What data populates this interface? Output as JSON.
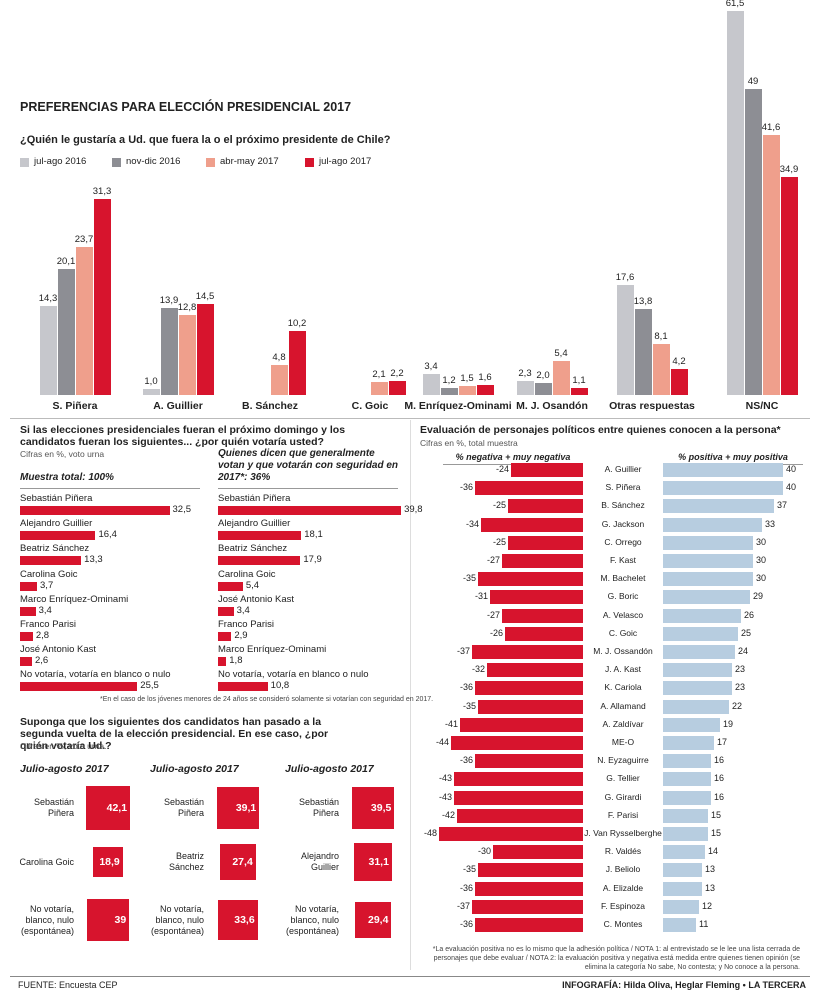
{
  "chart_data": [
    {
      "type": "grouped-bar",
      "title": "PREFERENCIAS PARA ELECCIÓN PRESIDENCIAL 2017",
      "subtitle": "¿Quién le gustaría a Ud. que fuera la o el próximo presidente de Chile?",
      "categories": [
        "S. Piñera",
        "A. Guillier",
        "B. Sánchez",
        "C. Goic",
        "M. Enríquez-Ominami",
        "M. J. Osandón",
        "Otras respuestas",
        "NS/NC"
      ],
      "series": [
        {
          "name": "jul-ago 2016",
          "color": "#c6c7cc",
          "values": [
            14.3,
            1.0,
            null,
            null,
            3.4,
            2.3,
            17.6,
            61.5
          ],
          "value_labels": [
            "14,3",
            "1,0",
            null,
            null,
            "3,4",
            "2,3",
            "17,6",
            "61,5"
          ]
        },
        {
          "name": "nov-dic 2016",
          "color": "#8d8e94",
          "values": [
            20.1,
            13.9,
            null,
            null,
            1.2,
            2.0,
            13.8,
            49
          ],
          "value_labels": [
            "20,1",
            "13,9",
            null,
            null,
            "1,2",
            "2,0",
            "13,8",
            "49"
          ]
        },
        {
          "name": "abr-may 2017",
          "color": "#ef9f8c",
          "values": [
            23.7,
            12.8,
            4.8,
            2.1,
            1.5,
            5.4,
            8.1,
            41.6
          ],
          "value_labels": [
            "23,7",
            "12,8",
            "4,8",
            "2,1",
            "1,5",
            "5,4",
            "8,1",
            "41,6"
          ]
        },
        {
          "name": "jul-ago 2017",
          "color": "#d7142d",
          "values": [
            31.3,
            14.5,
            10.2,
            2.2,
            1.6,
            1.1,
            4.2,
            34.9
          ],
          "value_labels": [
            "31,3",
            "14,5",
            "10,2",
            "2,2",
            "1,6",
            "1,1",
            "4,2",
            "34,9"
          ]
        }
      ]
    },
    {
      "type": "hbar",
      "section_title": "Si las elecciones presidenciales fueran el próximo domingo y los candidatos fueran los siguientes... ¿por quién votaría usted?",
      "note": "Cifras en %, voto urna",
      "title": "Muestra total: 100%",
      "color": "#d7142d",
      "categories": [
        "Sebastián Piñera",
        "Alejandro Guillier",
        "Beatriz Sánchez",
        "Carolina Goic",
        "Marco Enríquez-Ominami",
        "Franco Parisi",
        "José Antonio Kast",
        "No votaría, votaría en blanco o nulo"
      ],
      "values": [
        32.5,
        16.4,
        13.3,
        3.7,
        3.4,
        2.8,
        2.6,
        25.5
      ],
      "value_labels": [
        "32,5",
        "16,4",
        "13,3",
        "3,7",
        "3,4",
        "2,8",
        "2,6",
        "25,5"
      ]
    },
    {
      "type": "hbar",
      "title": "Quienes dicen que generalmente votan y que votarán con seguridad en 2017*: 36%",
      "footnote": "*En el caso de los jóvenes menores de 24 años se consideró solamente si votarían con seguridad en 2017.",
      "color": "#d7142d",
      "categories": [
        "Sebastián Piñera",
        "Alejandro Guillier",
        "Beatriz Sánchez",
        "Carolina Goic",
        "José Antonio Kast",
        "Franco Parisi",
        "Marco Enríquez-Ominami",
        "No votaría, votaría en blanco o nulo"
      ],
      "values": [
        39.8,
        18.1,
        17.9,
        5.4,
        3.4,
        2.9,
        1.8,
        10.8
      ],
      "value_labels": [
        "39,8",
        "18,1",
        "17,9",
        "5,4",
        "3,4",
        "2,9",
        "1,8",
        "10,8"
      ]
    },
    {
      "type": "square",
      "section_title": "Suponga que los siguientes dos candidatos han pasado a la segunda vuelta de la elección presidencial. En ese caso, ¿por quién votaría Ud.?",
      "note": "Cifras en %, voto urna.",
      "title": "Julio-agosto 2017",
      "color": "#d7142d",
      "categories": [
        "Sebastián Piñera",
        "Carolina Goic",
        "No votaría, blanco, nulo (espontánea)"
      ],
      "values": [
        42.1,
        18.9,
        39
      ],
      "value_labels": [
        "42,1",
        "18,9",
        "39"
      ]
    },
    {
      "type": "square",
      "title": "Julio-agosto 2017",
      "color": "#d7142d",
      "categories": [
        "Sebastián Piñera",
        "Beatriz Sánchez",
        "No votaría, blanco, nulo (espontánea)"
      ],
      "values": [
        39.1,
        27.4,
        33.6
      ],
      "value_labels": [
        "39,1",
        "27,4",
        "33,6"
      ]
    },
    {
      "type": "square",
      "title": "Julio-agosto 2017",
      "color": "#d7142d",
      "categories": [
        "Sebastián Piñera",
        "Alejandro Guillier",
        "No votaría, blanco, nulo (espontánea)"
      ],
      "values": [
        39.5,
        31.1,
        29.4
      ],
      "value_labels": [
        "39,5",
        "31,1",
        "29,4"
      ]
    },
    {
      "type": "diverging-bar",
      "title": "Evaluación de personajes políticos entre quienes conocen a la persona*",
      "note": "Cifras en %, total muestra",
      "footnote": "*La evaluación positiva no es lo mismo que la adhesión política / NOTA 1: al entrevistado se le lee una lista cerrada de personajes que debe evaluar / NOTA 2: la evaluación positiva y negativa está medida entre quienes tienen opinión (se elimina la categoría No sabe, No contesta; y No conoce a la persona.",
      "categories": [
        "A. Guillier",
        "S. Piñera",
        "B. Sánchez",
        "G. Jackson",
        "C. Orrego",
        "F. Kast",
        "M. Bachelet",
        "G. Boric",
        "A. Velasco",
        "C. Goic",
        "M. J. Ossandón",
        "J. A. Kast",
        "K. Cariola",
        "A. Allamand",
        "A. Zaldívar",
        "ME-O",
        "N. Eyzaguirre",
        "G. Tellier",
        "G. Girardi",
        "F. Parisi",
        "J. Van Rysselberghe",
        "R. Valdés",
        "J. Beliolo",
        "A. Elizalde",
        "F. Espinoza",
        "C. Montes"
      ],
      "series": [
        {
          "name": "% negativa + muy negativa",
          "color": "#d7142d",
          "values": [
            -24,
            -36,
            -25,
            -34,
            -25,
            -27,
            -35,
            -31,
            -27,
            -26,
            -37,
            -32,
            -36,
            -35,
            -41,
            -44,
            -36,
            -43,
            -43,
            -42,
            -48,
            -30,
            -35,
            -36,
            -37,
            -36
          ]
        },
        {
          "name": "% positiva + muy positiva",
          "color": "#b7cde0",
          "values": [
            40,
            40,
            37,
            33,
            30,
            30,
            30,
            29,
            26,
            25,
            24,
            23,
            23,
            22,
            19,
            17,
            16,
            16,
            16,
            15,
            15,
            14,
            13,
            13,
            12,
            11
          ]
        }
      ]
    }
  ],
  "footer": {
    "source": "FUENTE: Encuesta CEP",
    "credits": "INFOGRAFÍA: Hilda Oliva, Heglar Fleming • LA TERCERA"
  }
}
